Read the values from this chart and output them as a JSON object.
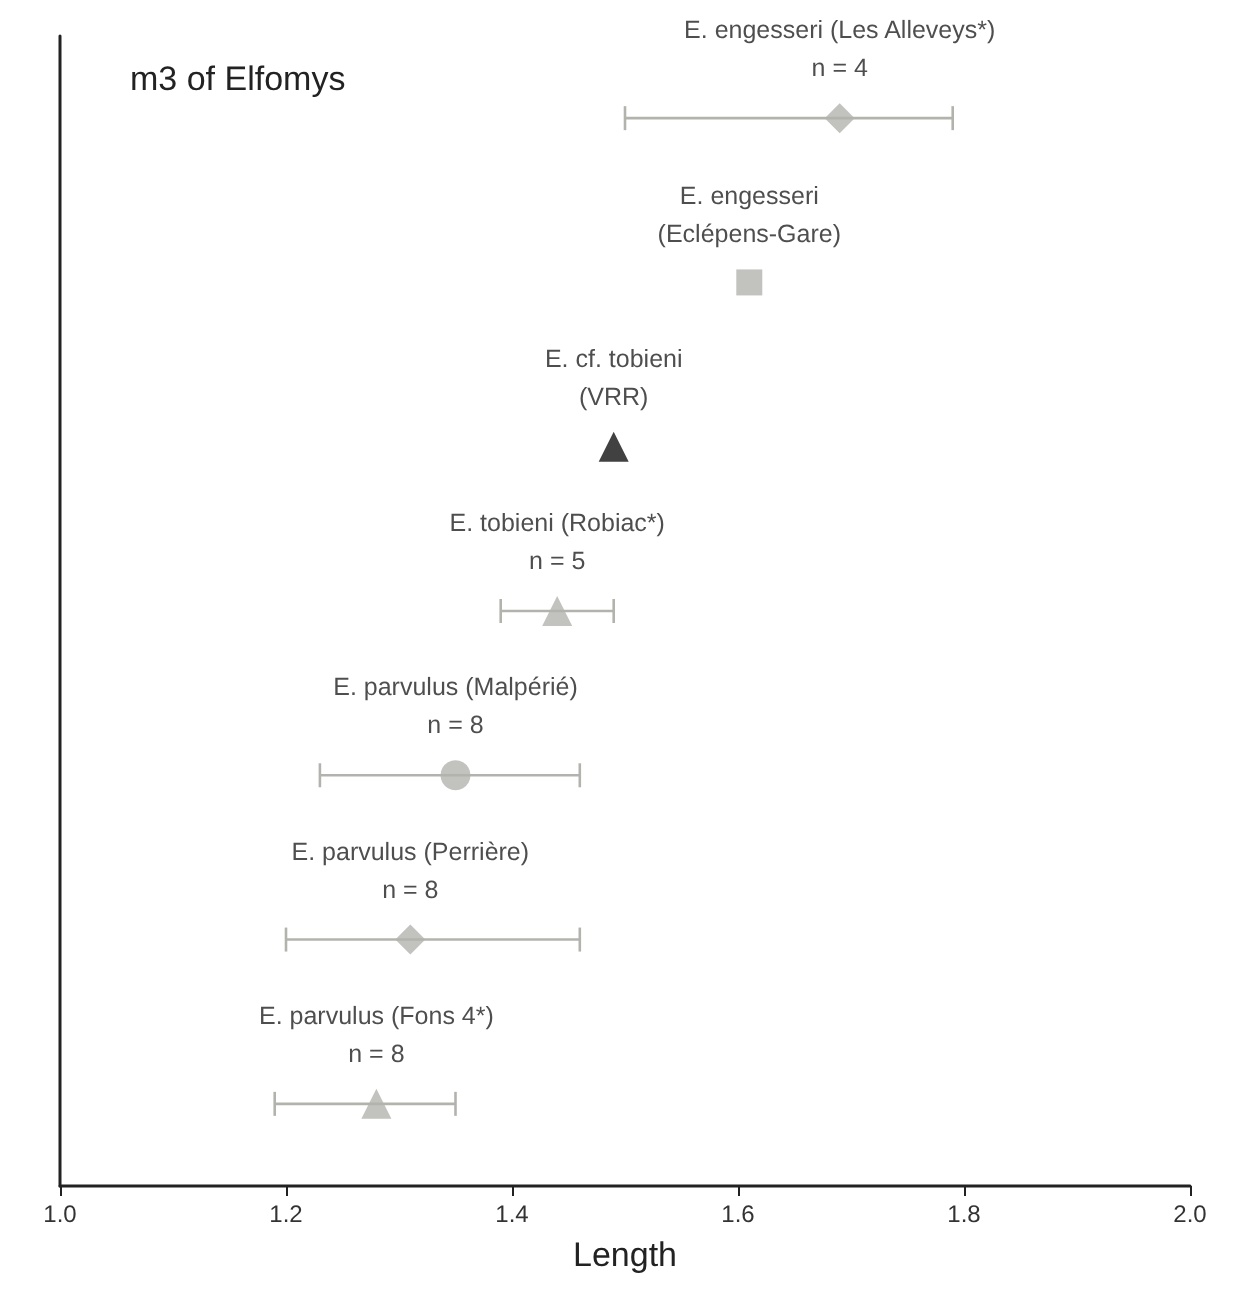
{
  "chart_data": {
    "type": "scatter",
    "orientation": "horizontal",
    "title": "m3 of Elfomys",
    "xlabel": "Length",
    "categories": [
      null,
      null,
      null,
      null,
      null,
      null,
      null
    ],
    "xlim": [
      1.0,
      2.0
    ],
    "xticks": [
      {
        "value": 1.0,
        "label": "1.0"
      },
      {
        "value": 1.2,
        "label": "1.2"
      },
      {
        "value": 1.4,
        "label": "1.4"
      },
      {
        "value": 1.6,
        "label": "1.6"
      },
      {
        "value": 1.8,
        "label": "1.8"
      },
      {
        "value": 2.0,
        "label": "2.0"
      }
    ],
    "grid": false,
    "legend": false,
    "tick_labels": "x",
    "series": [
      {
        "name": "E. engesseri (Les Alleveys*)\nn = 4",
        "color": "#b3b3ae",
        "marker": "diamond",
        "values": [
          1.69,
          null,
          null,
          null,
          null,
          null,
          null
        ],
        "errors": [
          [
            1.5,
            1.79
          ],
          null,
          null,
          null,
          null,
          null,
          null
        ]
      },
      {
        "name": "E. engesseri\n(Eclépens-Gare)",
        "color": "#b3b3ae",
        "marker": "square",
        "values": [
          null,
          1.61,
          null,
          null,
          null,
          null,
          null
        ]
      },
      {
        "name": "E. cf. tobieni\n(VRR)",
        "color": "#111111",
        "marker": "triangle",
        "values": [
          null,
          null,
          1.49,
          null,
          null,
          null,
          null
        ]
      },
      {
        "name": "E. tobieni (Robiac*)\nn = 5",
        "color": "#b3b3ae",
        "marker": "triangle",
        "values": [
          null,
          null,
          null,
          1.44,
          null,
          null,
          null
        ],
        "errors": [
          null,
          null,
          null,
          [
            1.39,
            1.49
          ],
          null,
          null,
          null
        ]
      },
      {
        "name": "E. parvulus (Malpérié)\nn = 8",
        "color": "#b3b3ae",
        "marker": "circle",
        "values": [
          null,
          null,
          null,
          null,
          1.35,
          null,
          null
        ],
        "errors": [
          null,
          null,
          null,
          null,
          [
            1.23,
            1.46
          ],
          null,
          null
        ]
      },
      {
        "name": "E. parvulus (Perrière)\nn = 8",
        "color": "#b3b3ae",
        "marker": "diamond",
        "values": [
          null,
          null,
          null,
          null,
          null,
          1.31,
          null
        ],
        "errors": [
          null,
          null,
          null,
          null,
          null,
          [
            1.2,
            1.46
          ],
          null
        ]
      },
      {
        "name": "E. parvulus (Fons 4*)\nn = 8",
        "color": "#b3b3ae",
        "marker": "triangle",
        "values": [
          null,
          null,
          null,
          null,
          null,
          null,
          1.28
        ],
        "errors": [
          null,
          null,
          null,
          null,
          null,
          null,
          [
            1.19,
            1.35
          ]
        ]
      }
    ]
  }
}
